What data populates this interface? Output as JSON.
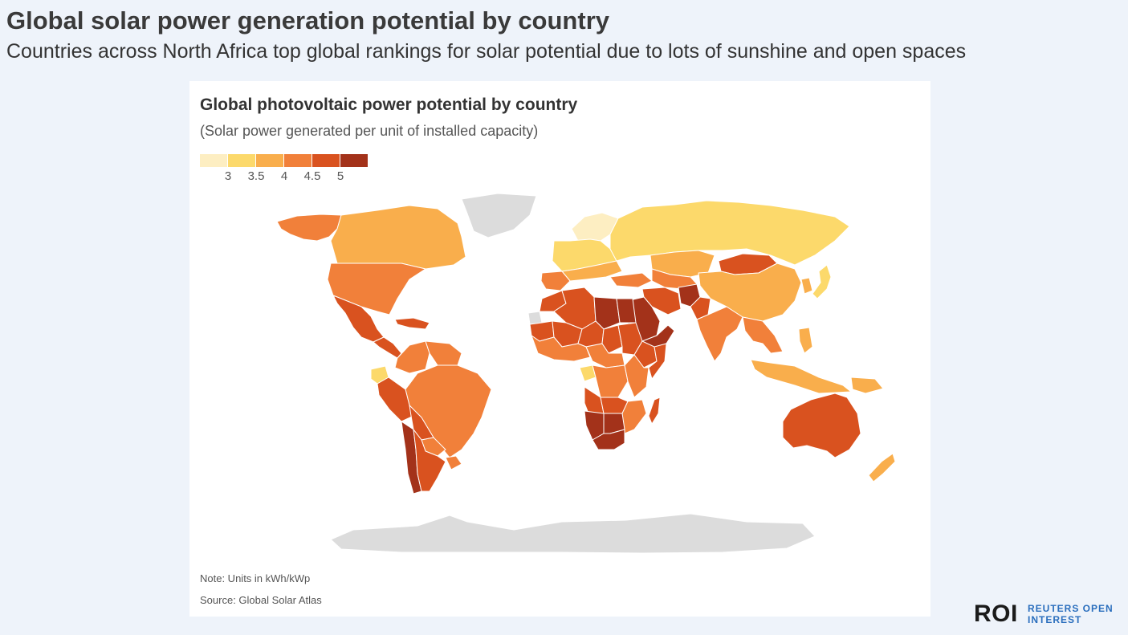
{
  "header": {
    "title": "Global solar power generation potential by country",
    "subtitle": "Countries across North Africa top global rankings for solar potential due to lots of sunshine and open spaces"
  },
  "chart": {
    "title": "Global photovoltaic power potential by country",
    "subtitle": "(Solar power generated per unit of installed capacity)",
    "note": "Note: Units in kWh/kWp",
    "source": "Source: Global Solar Atlas"
  },
  "legend": {
    "swatches": [
      "#fdeec2",
      "#fcd96b",
      "#f9ae4c",
      "#f1803a",
      "#d9521f",
      "#a3321a"
    ],
    "ticks": [
      "3",
      "3.5",
      "4",
      "4.5",
      "5"
    ]
  },
  "map": {
    "no_data_color": "#dcdcdc",
    "regions": [
      {
        "name": "Greenland",
        "tier": -1
      },
      {
        "name": "Antarctica",
        "tier": -1
      },
      {
        "name": "Alaska",
        "tier": 3
      },
      {
        "name": "Canada",
        "tier": 2
      },
      {
        "name": "United States",
        "tier": 3
      },
      {
        "name": "Mexico",
        "tier": 4
      },
      {
        "name": "Central America",
        "tier": 4
      },
      {
        "name": "Caribbean",
        "tier": 4
      },
      {
        "name": "Colombia",
        "tier": 3
      },
      {
        "name": "Ecuador",
        "tier": 1
      },
      {
        "name": "Venezuela",
        "tier": 3
      },
      {
        "name": "Brazil",
        "tier": 3
      },
      {
        "name": "Peru",
        "tier": 4
      },
      {
        "name": "Bolivia",
        "tier": 4
      },
      {
        "name": "Paraguay",
        "tier": 3
      },
      {
        "name": "Chile",
        "tier": 5
      },
      {
        "name": "Argentina",
        "tier": 4
      },
      {
        "name": "Uruguay",
        "tier": 3
      },
      {
        "name": "Northern Europe",
        "tier": 0
      },
      {
        "name": "Central Europe",
        "tier": 1
      },
      {
        "name": "Southern Europe",
        "tier": 2
      },
      {
        "name": "Iberia",
        "tier": 3
      },
      {
        "name": "Russia",
        "tier": 1
      },
      {
        "name": "Kazakhstan",
        "tier": 2
      },
      {
        "name": "Central Asia",
        "tier": 3
      },
      {
        "name": "Mongolia",
        "tier": 4
      },
      {
        "name": "China",
        "tier": 2
      },
      {
        "name": "Korea",
        "tier": 2
      },
      {
        "name": "Japan",
        "tier": 1
      },
      {
        "name": "Turkey",
        "tier": 3
      },
      {
        "name": "Iran",
        "tier": 4
      },
      {
        "name": "Afghanistan",
        "tier": 5
      },
      {
        "name": "Pakistan",
        "tier": 4
      },
      {
        "name": "Saudi Arabia",
        "tier": 5
      },
      {
        "name": "Yemen and Oman",
        "tier": 5
      },
      {
        "name": "India",
        "tier": 3
      },
      {
        "name": "Southeast Asia",
        "tier": 3
      },
      {
        "name": "Indonesia",
        "tier": 2
      },
      {
        "name": "Philippines",
        "tier": 2
      },
      {
        "name": "Papua New Guinea",
        "tier": 2
      },
      {
        "name": "Australia",
        "tier": 4
      },
      {
        "name": "New Zealand",
        "tier": 2
      },
      {
        "name": "Morocco",
        "tier": 4
      },
      {
        "name": "Western Sahara",
        "tier": -1
      },
      {
        "name": "Algeria",
        "tier": 4
      },
      {
        "name": "Libya",
        "tier": 5
      },
      {
        "name": "Egypt",
        "tier": 5
      },
      {
        "name": "Mauritania",
        "tier": 4
      },
      {
        "name": "Mali",
        "tier": 4
      },
      {
        "name": "Niger",
        "tier": 4
      },
      {
        "name": "Chad",
        "tier": 4
      },
      {
        "name": "Sudan",
        "tier": 4
      },
      {
        "name": "West Africa",
        "tier": 3
      },
      {
        "name": "Ethiopia",
        "tier": 4
      },
      {
        "name": "Somalia",
        "tier": 4
      },
      {
        "name": "Central Africa",
        "tier": 3
      },
      {
        "name": "Gabon",
        "tier": 1
      },
      {
        "name": "DR Congo",
        "tier": 3
      },
      {
        "name": "East Africa",
        "tier": 3
      },
      {
        "name": "Angola",
        "tier": 4
      },
      {
        "name": "Zambia",
        "tier": 4
      },
      {
        "name": "Mozambique",
        "tier": 3
      },
      {
        "name": "Namibia",
        "tier": 5
      },
      {
        "name": "Botswana",
        "tier": 5
      },
      {
        "name": "South Africa",
        "tier": 5
      },
      {
        "name": "Madagascar",
        "tier": 4
      }
    ]
  },
  "brand": {
    "mark": "ROI",
    "line1": "REUTERS OPEN",
    "line2": "INTEREST"
  }
}
